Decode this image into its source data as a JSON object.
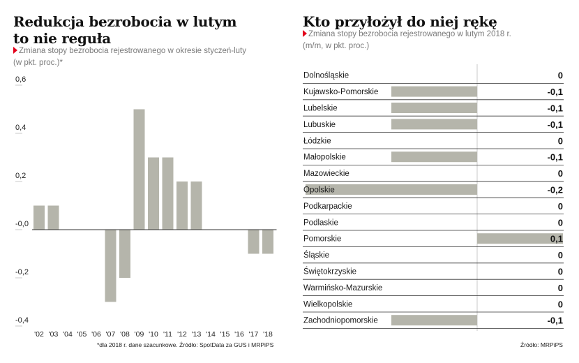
{
  "left": {
    "title_line1": "Redukcja bezrobocia w lutym",
    "title_line2": "to nie reguła",
    "subtitle_line1": "Zmiana stopy bezrobocia rejestrowanego w okresie styczeń-luty",
    "subtitle_line2": "(w pkt. proc.)*",
    "footnote": "*dla 2018 r. dane szacunkowe. Źródło: SpotData za GUS i MRPiPS"
  },
  "right": {
    "title": "Kto przyłożył do niej rękę",
    "subtitle_line1": "Zmiana stopy bezrobocia rejestrowanego w lutym 2018 r.",
    "subtitle_line2": "(m/m, w pkt. proc.)",
    "source": "Źródło: MRPiPS"
  },
  "colors": {
    "bar": "#b5b5ab",
    "accent": "#e3001b",
    "axis": "#333333",
    "grid": "#c8c8c8"
  },
  "chart_data": [
    {
      "type": "bar",
      "categories": [
        "'02",
        "'03",
        "'04",
        "'05",
        "'06",
        "'07",
        "'08",
        "'09",
        "'10",
        "'11",
        "'12",
        "'13",
        "'14",
        "'15",
        "'16",
        "'17",
        "'18"
      ],
      "values": [
        0.1,
        0.1,
        0.0,
        0.0,
        0.0,
        -0.3,
        -0.2,
        0.5,
        0.3,
        0.3,
        0.2,
        0.2,
        0.0,
        0.0,
        0.0,
        -0.1,
        -0.1
      ],
      "yticks": [
        "0,6",
        "0,4",
        "0,2",
        "-0,0",
        "-0,2",
        "-0,4"
      ],
      "ytick_values": [
        0.6,
        0.4,
        0.2,
        0.0,
        -0.2,
        -0.4
      ],
      "ylim": [
        -0.4,
        0.6
      ]
    },
    {
      "type": "bar",
      "orientation": "horizontal",
      "categories": [
        "Dolnośląskie",
        "Kujawsko-Pomorskie",
        "Lubelskie",
        "Lubuskie",
        "Łódzkie",
        "Małopolskie",
        "Mazowieckie",
        "Opolskie",
        "Podkarpackie",
        "Podlaskie",
        "Pomorskie",
        "Śląskie",
        "Świętokrzyskie",
        "Warmińsko-Mazurskie",
        "Wielkopolskie",
        "Zachodniopomorskie"
      ],
      "values": [
        0,
        -0.1,
        -0.1,
        -0.1,
        0,
        -0.1,
        0,
        -0.2,
        0,
        0,
        0.1,
        0,
        0,
        0,
        0,
        -0.1
      ],
      "value_labels": [
        "0",
        "-0,1",
        "-0,1",
        "-0,1",
        "0",
        "-0,1",
        "0",
        "-0,2",
        "0",
        "0",
        "0,1",
        "0",
        "0",
        "0",
        "0",
        "-0,1"
      ]
    }
  ]
}
